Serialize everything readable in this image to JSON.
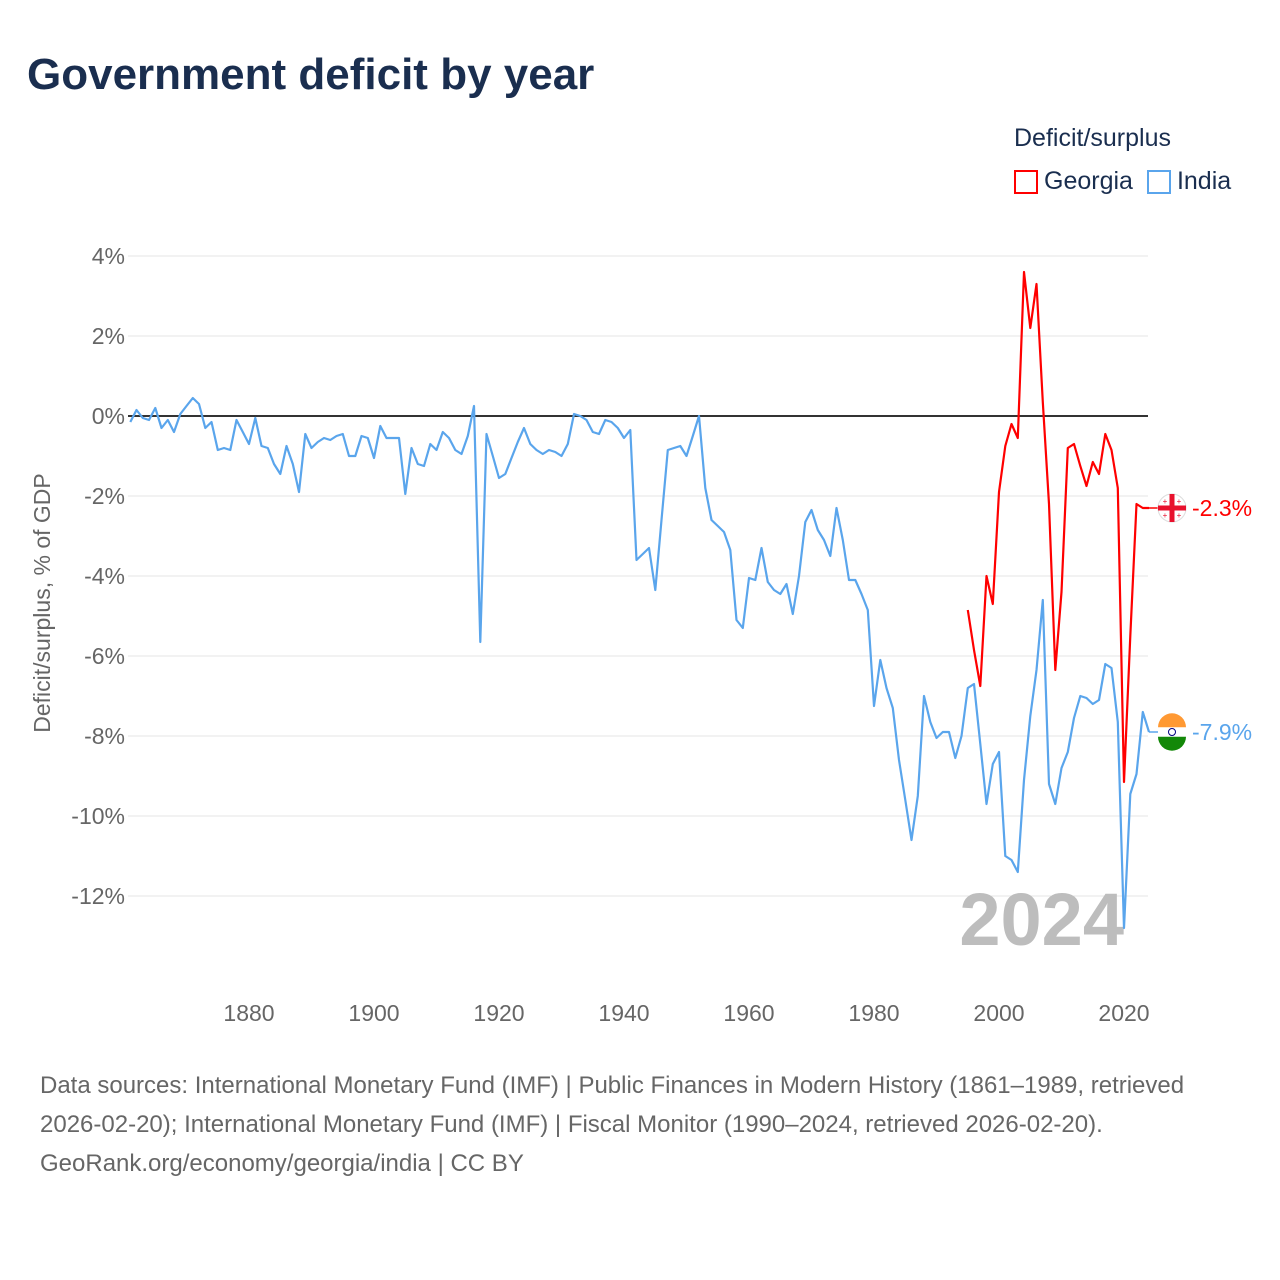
{
  "chart_data": {
    "type": "line",
    "title": "Government deficit by year",
    "ylabel": "Deficit/surplus, % of GDP",
    "xlabel": "",
    "ylim": [
      -13.5,
      4.5
    ],
    "xlim": [
      1861,
      2024
    ],
    "y_ticks": [
      4,
      2,
      0,
      -2,
      -4,
      -6,
      -8,
      -10,
      -12
    ],
    "y_tick_labels": [
      "4%",
      "2%",
      "0%",
      "-2%",
      "-4%",
      "-6%",
      "-8%",
      "-10%",
      "-12%"
    ],
    "x_ticks": [
      1880,
      1900,
      1920,
      1940,
      1960,
      1980,
      2000,
      2020
    ],
    "x_tick_labels": [
      "1880",
      "1900",
      "1920",
      "1940",
      "1960",
      "1980",
      "2000",
      "2020"
    ],
    "grid": true,
    "legend_title": "Deficit/surplus",
    "legend_position": "top-right",
    "year_watermark": "2024",
    "series": [
      {
        "name": "Georgia",
        "color": "#ff0000",
        "start_year": 1995,
        "end_label": "-2.3%",
        "flag": "georgia-flag",
        "values": [
          -4.85,
          -5.85,
          -6.75,
          -4.0,
          -4.7,
          -1.9,
          -0.75,
          -0.2,
          -0.55,
          3.6,
          2.2,
          3.3,
          0.35,
          -2.2,
          -6.35,
          -4.4,
          -0.8,
          -0.7,
          -1.25,
          -1.75,
          -1.15,
          -1.45,
          -0.45,
          -0.85,
          -1.8,
          -9.15,
          -5.5,
          -2.2,
          -2.3,
          -2.3
        ]
      },
      {
        "name": "India",
        "color": "#5aa5ec",
        "start_year": 1861,
        "end_label": "-7.9%",
        "flag": "india-flag",
        "values": [
          -0.15,
          0.15,
          -0.05,
          -0.1,
          0.2,
          -0.3,
          -0.1,
          -0.4,
          0.05,
          0.25,
          0.45,
          0.3,
          -0.3,
          -0.15,
          -0.85,
          -0.8,
          -0.85,
          -0.1,
          -0.4,
          -0.7,
          -0.05,
          -0.75,
          -0.8,
          -1.2,
          -1.45,
          -0.75,
          -1.2,
          -1.9,
          -0.45,
          -0.8,
          -0.65,
          -0.55,
          -0.6,
          -0.5,
          -0.45,
          -1.0,
          -1.0,
          -0.5,
          -0.55,
          -1.05,
          -0.25,
          -0.55,
          -0.55,
          -0.55,
          -1.95,
          -0.8,
          -1.2,
          -1.25,
          -0.7,
          -0.85,
          -0.4,
          -0.55,
          -0.85,
          -0.95,
          -0.5,
          0.25,
          -5.65,
          -0.45,
          -1.0,
          -1.55,
          -1.45,
          -1.05,
          -0.65,
          -0.3,
          -0.7,
          -0.85,
          -0.95,
          -0.85,
          -0.9,
          -1.0,
          -0.7,
          0.05,
          0.0,
          -0.1,
          -0.4,
          -0.45,
          -0.1,
          -0.15,
          -0.3,
          -0.55,
          -0.35,
          -3.6,
          -3.45,
          -3.3,
          -4.35,
          -2.6,
          -0.85,
          -0.8,
          -0.75,
          -1.0,
          -0.5,
          0.0,
          -1.8,
          -2.6,
          -2.75,
          -2.9,
          -3.35,
          -5.1,
          -5.3,
          -4.05,
          -4.1,
          -3.3,
          -4.15,
          -4.35,
          -4.45,
          -4.2,
          -4.95,
          -4.0,
          -2.65,
          -2.35,
          -2.85,
          -3.1,
          -3.5,
          -2.3,
          -3.1,
          -4.1,
          -4.1,
          -4.45,
          -4.85,
          -7.25,
          -6.1,
          -6.8,
          -7.3,
          -8.6,
          -9.6,
          -10.6,
          -9.5,
          -7.0,
          -7.65,
          -8.05,
          -7.9,
          -7.9,
          -8.55,
          -8.0,
          -6.8,
          -6.7,
          -8.2,
          -9.7,
          -8.7,
          -8.4,
          -11.0,
          -11.1,
          -11.4,
          -9.1,
          -7.5,
          -6.35,
          -4.6,
          -9.2,
          -9.7,
          -8.8,
          -8.4,
          -7.55,
          -7.0,
          -7.05,
          -7.2,
          -7.1,
          -6.2,
          -6.3,
          -7.65,
          -12.8,
          -9.45,
          -8.95,
          -7.4,
          -7.9
        ]
      }
    ]
  },
  "footer": {
    "sources": "Data sources: International Monetary Fund (IMF) | Public Finances in Modern History (1861–1989, retrieved 2026-02-20); International Monetary Fund (IMF) | Fiscal Monitor (1990–2024, retrieved 2026-02-20).",
    "attribution": "GeoRank.org/economy/georgia/india | CC BY"
  }
}
